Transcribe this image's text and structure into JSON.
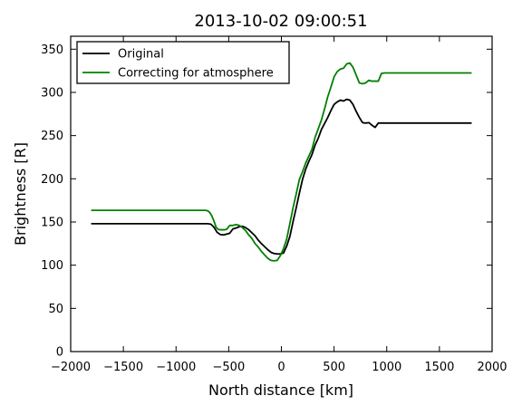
{
  "chart_data": {
    "type": "line",
    "title": "2013-10-02 09:00:51",
    "xlabel": "North distance [km]",
    "ylabel": "Brightness [R]",
    "xlim": [
      -2000,
      2000
    ],
    "ylim": [
      0,
      365
    ],
    "xticks": [
      -2000,
      -1500,
      -1000,
      -500,
      0,
      500,
      1000,
      1500,
      2000
    ],
    "yticks": [
      0,
      50,
      100,
      150,
      200,
      250,
      300,
      350
    ],
    "xtick_labels": [
      "−2000",
      "−1500",
      "−1000",
      "−500",
      "0",
      "500",
      "1000",
      "1500",
      "2000"
    ],
    "ytick_labels": [
      "0",
      "50",
      "100",
      "150",
      "200",
      "250",
      "300",
      "350"
    ],
    "grid": false,
    "legend_position": "top-left",
    "series": [
      {
        "name": "Original",
        "color": "#000000",
        "x": [
          -1800,
          -1500,
          -1200,
          -1000,
          -800,
          -700,
          -670,
          -640,
          -610,
          -580,
          -550,
          -520,
          -490,
          -460,
          -430,
          -400,
          -370,
          -340,
          -310,
          -280,
          -250,
          -220,
          -190,
          -160,
          -130,
          -100,
          -70,
          -40,
          -10,
          20,
          50,
          80,
          110,
          140,
          170,
          200,
          230,
          260,
          290,
          320,
          350,
          380,
          410,
          440,
          470,
          500,
          530,
          560,
          590,
          620,
          650,
          680,
          710,
          740,
          770,
          800,
          830,
          860,
          890,
          920,
          950,
          980,
          1010,
          1040,
          1100,
          1200,
          1400,
          1600,
          1800
        ],
        "y": [
          148,
          148,
          148,
          148,
          148,
          148,
          147.5,
          144,
          138,
          135.5,
          135,
          136,
          137,
          142,
          143,
          144.5,
          145,
          143.5,
          141,
          137.5,
          134,
          129,
          125,
          121.5,
          118,
          115,
          113.5,
          113,
          113,
          114,
          122,
          133,
          150,
          166,
          183,
          199,
          211,
          220,
          228,
          239,
          247,
          257,
          264,
          271,
          279,
          286,
          289,
          291,
          290,
          292,
          291,
          286,
          278,
          271,
          265,
          264.5,
          265,
          262,
          259.5,
          264.5,
          264.5,
          264.5,
          264.5,
          264.5,
          264.5,
          264.5,
          264.5,
          264.5,
          264.5
        ]
      },
      {
        "name": "Correcting for atmosphere",
        "color": "#008000",
        "x": [
          -1800,
          -1500,
          -1200,
          -1000,
          -800,
          -720,
          -700,
          -680,
          -660,
          -640,
          -620,
          -600,
          -580,
          -560,
          -540,
          -520,
          -490,
          -460,
          -430,
          -400,
          -370,
          -340,
          -310,
          -280,
          -250,
          -220,
          -190,
          -160,
          -130,
          -100,
          -70,
          -40,
          -10,
          20,
          50,
          80,
          110,
          140,
          170,
          200,
          230,
          260,
          290,
          320,
          350,
          380,
          410,
          440,
          470,
          500,
          530,
          560,
          590,
          620,
          650,
          680,
          710,
          740,
          770,
          800,
          830,
          860,
          890,
          920,
          950,
          980,
          1010,
          1040,
          1100,
          1200,
          1400,
          1600,
          1800
        ],
        "y": [
          163.5,
          163.5,
          163.5,
          163.5,
          163.5,
          163.5,
          163,
          161,
          157,
          151,
          144,
          141.5,
          141,
          141,
          141,
          141.5,
          146,
          146,
          147,
          146,
          143.5,
          140,
          135,
          131,
          125,
          121,
          116,
          112,
          108,
          105.5,
          105,
          105.5,
          111,
          119,
          130,
          148,
          166,
          182,
          199,
          208,
          218,
          226,
          234,
          248,
          258,
          268,
          281,
          295,
          306,
          318,
          324,
          327,
          328,
          333,
          334,
          329,
          320,
          311,
          310,
          311,
          314,
          313,
          313,
          313,
          322,
          322.5,
          322.5,
          322.5,
          322.5,
          322.5,
          322.5,
          322.5,
          322.5
        ]
      }
    ]
  }
}
